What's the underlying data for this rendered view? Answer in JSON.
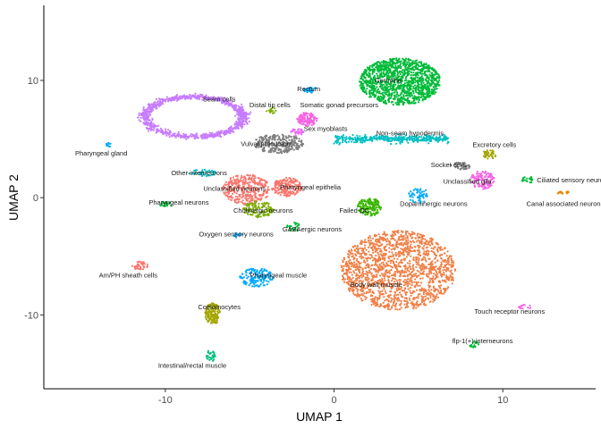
{
  "chart_data": {
    "type": "scatter",
    "xlabel": "UMAP 1",
    "ylabel": "UMAP 2",
    "xlim": [
      -17.2,
      15.5
    ],
    "ylim": [
      -16.3,
      16.4
    ],
    "x_ticks": [
      {
        "value": -10,
        "label": "-10"
      },
      {
        "value": 0,
        "label": "0"
      },
      {
        "value": 10,
        "label": "10"
      }
    ],
    "y_ticks": [
      {
        "value": -10,
        "label": "-10"
      },
      {
        "value": 0,
        "label": "0"
      },
      {
        "value": 10,
        "label": "10"
      }
    ],
    "grid": false,
    "legend": "none",
    "clusters": [
      {
        "label": "Germline",
        "x": 3.9,
        "y": 9.9,
        "color": "#00BA38",
        "shape": "blob",
        "rx": 2.4,
        "ry": 2.0,
        "n": 1200
      },
      {
        "label": "Seam cells",
        "x": -8.3,
        "y": 6.9,
        "color": "#C77CFF",
        "shape": "ring",
        "rx": 2.9,
        "ry": 1.7,
        "n": 900
      },
      {
        "label": "Body wall muscle",
        "x": 3.8,
        "y": -6.2,
        "color": "#F07F45",
        "shape": "blob",
        "rx": 3.4,
        "ry": 3.4,
        "n": 1600
      },
      {
        "label": "Rectum",
        "x": -1.4,
        "y": 9.2,
        "color": "#00A9FF",
        "shape": "blob",
        "rx": 0.4,
        "ry": 0.25,
        "n": 30
      },
      {
        "label": "Distal tip cells",
        "x": -3.7,
        "y": 7.4,
        "color": "#7CAE00",
        "shape": "blob",
        "rx": 0.3,
        "ry": 0.3,
        "n": 15
      },
      {
        "label": "Somatic gonad precursors",
        "x": -1.6,
        "y": 6.7,
        "color": "#F564E3",
        "shape": "blob",
        "rx": 0.6,
        "ry": 0.6,
        "n": 120
      },
      {
        "label": "Sex myoblasts",
        "x": -2.2,
        "y": 5.6,
        "color": "#E76BF3",
        "shape": "blob",
        "rx": 0.4,
        "ry": 0.3,
        "n": 30
      },
      {
        "label": "Vulval precursors",
        "x": -3.3,
        "y": 4.6,
        "color": "#7F7F7F",
        "shape": "blob",
        "rx": 1.5,
        "ry": 0.8,
        "n": 250
      },
      {
        "label": "Non-seam hypodermis",
        "x": 3.4,
        "y": 5.0,
        "color": "#00BFC4",
        "shape": "band",
        "rx": 3.4,
        "ry": 0.3,
        "n": 350
      },
      {
        "label": "Excretory cells",
        "x": 9.2,
        "y": 3.7,
        "color": "#A3A500",
        "shape": "blob",
        "rx": 0.4,
        "ry": 0.4,
        "n": 40
      },
      {
        "label": "Pharyngeal gland",
        "x": -13.4,
        "y": 4.5,
        "color": "#00A9FF",
        "shape": "blob",
        "rx": 0.2,
        "ry": 0.2,
        "n": 10
      },
      {
        "label": "Other interneurons",
        "x": -7.8,
        "y": 2.1,
        "color": "#00BFC4",
        "shape": "blob",
        "rx": 0.8,
        "ry": 0.3,
        "n": 40
      },
      {
        "label": "Socket cells",
        "x": 7.5,
        "y": 2.7,
        "color": "#7F7F7F",
        "shape": "blob",
        "rx": 0.6,
        "ry": 0.3,
        "n": 40
      },
      {
        "label": "Unclassified glia",
        "x": 8.8,
        "y": 1.5,
        "color": "#F564E3",
        "shape": "blob",
        "rx": 0.7,
        "ry": 0.8,
        "n": 120
      },
      {
        "label": "Ciliated sensory neurons",
        "x": 11.5,
        "y": 1.5,
        "color": "#00BA38",
        "shape": "blob",
        "rx": 0.4,
        "ry": 0.3,
        "n": 20
      },
      {
        "label": "Unclassified neurons",
        "x": -5.2,
        "y": 0.7,
        "color": "#F8766D",
        "shape": "blob",
        "rx": 1.4,
        "ry": 1.3,
        "n": 350
      },
      {
        "label": "Pharyngeal epithelia",
        "x": -2.8,
        "y": 0.9,
        "color": "#F8766D",
        "shape": "blob",
        "rx": 0.9,
        "ry": 0.8,
        "n": 180
      },
      {
        "label": "Pharyngeal neurons",
        "x": -10.0,
        "y": -0.6,
        "color": "#00BA38",
        "shape": "blob",
        "rx": 0.4,
        "ry": 0.3,
        "n": 20
      },
      {
        "label": "Cholinergic neurons",
        "x": -4.5,
        "y": -1.0,
        "color": "#7CAE00",
        "shape": "blob",
        "rx": 0.9,
        "ry": 0.7,
        "n": 120
      },
      {
        "label": "Failed QC",
        "x": 2.1,
        "y": -0.8,
        "color": "#39B600",
        "shape": "blob",
        "rx": 0.7,
        "ry": 0.8,
        "n": 160
      },
      {
        "label": "Dopaminergic neurons",
        "x": 5.0,
        "y": 0.2,
        "color": "#00A9FF",
        "shape": "blob",
        "rx": 0.6,
        "ry": 0.7,
        "n": 60
      },
      {
        "label": "Canal associated neurons",
        "x": 13.6,
        "y": 0.4,
        "color": "#E58700",
        "shape": "blob",
        "rx": 0.4,
        "ry": 0.15,
        "n": 15
      },
      {
        "label": "Oxygen sensory neurons",
        "x": -5.7,
        "y": -3.2,
        "color": "#00A9FF",
        "shape": "blob",
        "rx": 0.3,
        "ry": 0.2,
        "n": 15
      },
      {
        "label": "GABAergic neurons",
        "x": -2.4,
        "y": -2.5,
        "color": "#00BA38",
        "shape": "blob",
        "rx": 0.4,
        "ry": 0.4,
        "n": 25
      },
      {
        "label": "Am/PH sheath cells",
        "x": -11.5,
        "y": -5.8,
        "color": "#F8766D",
        "shape": "blob",
        "rx": 0.5,
        "ry": 0.4,
        "n": 40
      },
      {
        "label": "Pharyngeal muscle",
        "x": -4.6,
        "y": -6.8,
        "color": "#00A9FF",
        "shape": "blob",
        "rx": 1.0,
        "ry": 0.8,
        "n": 150
      },
      {
        "label": "Coelomocytes",
        "x": -7.2,
        "y": -9.9,
        "color": "#A3A500",
        "shape": "blob",
        "rx": 0.45,
        "ry": 0.9,
        "n": 140
      },
      {
        "label": "Touch receptor neurons",
        "x": 11.3,
        "y": -9.3,
        "color": "#F564E3",
        "shape": "blob",
        "rx": 0.4,
        "ry": 0.2,
        "n": 15
      },
      {
        "label": "flp-1(+) interneurons",
        "x": 8.3,
        "y": -12.5,
        "color": "#00BA38",
        "shape": "blob",
        "rx": 0.3,
        "ry": 0.3,
        "n": 15
      },
      {
        "label": "Intestinal/rectal muscle",
        "x": -7.3,
        "y": -13.5,
        "color": "#00BF7D",
        "shape": "blob",
        "rx": 0.3,
        "ry": 0.5,
        "n": 30
      }
    ],
    "labels": [
      {
        "text": "Germline",
        "x": 3.2,
        "y": 9.8
      },
      {
        "text": "Rectum",
        "x": -1.5,
        "y": 9.1
      },
      {
        "text": "Seam cells",
        "x": -6.8,
        "y": 8.2
      },
      {
        "text": "Distal tip cells",
        "x": -3.8,
        "y": 7.7
      },
      {
        "text": "Somatic gonad precursors",
        "x": 0.3,
        "y": 7.7
      },
      {
        "text": "Sex myoblasts",
        "x": -0.5,
        "y": 5.7
      },
      {
        "text": "Non-seam hypodermis",
        "x": 4.5,
        "y": 5.3
      },
      {
        "text": "Vulval precursors",
        "x": -4.0,
        "y": 4.4
      },
      {
        "text": "Excretory cells",
        "x": 9.5,
        "y": 4.3
      },
      {
        "text": "Pharyngeal gland",
        "x": -13.8,
        "y": 3.6
      },
      {
        "text": "Socket cells",
        "x": 6.8,
        "y": 2.6
      },
      {
        "text": "Other interneurons",
        "x": -8.0,
        "y": 1.9
      },
      {
        "text": "Unclassified glia",
        "x": 7.9,
        "y": 1.2
      },
      {
        "text": "Ciliated sensory neurons",
        "x": 14.2,
        "y": 1.3
      },
      {
        "text": "Unclassified neurons",
        "x": -5.9,
        "y": 0.6
      },
      {
        "text": "Pharyngeal epithelia",
        "x": -1.4,
        "y": 0.7
      },
      {
        "text": "Pharyngeal neurons",
        "x": -9.2,
        "y": -0.6
      },
      {
        "text": "Dopaminergic neurons",
        "x": 5.9,
        "y": -0.7
      },
      {
        "text": "Canal associated neurons",
        "x": 13.7,
        "y": -0.7
      },
      {
        "text": "Cholinergic neurons",
        "x": -4.2,
        "y": -1.3
      },
      {
        "text": "Failed QC",
        "x": 1.2,
        "y": -1.3
      },
      {
        "text": "GABAergic neurons",
        "x": -1.3,
        "y": -2.9
      },
      {
        "text": "Oxygen sensory neurons",
        "x": -5.8,
        "y": -3.3
      },
      {
        "text": "Am/PH sheath cells",
        "x": -12.2,
        "y": -6.8
      },
      {
        "text": "Pharyngeal muscle",
        "x": -3.3,
        "y": -6.8
      },
      {
        "text": "Body wall muscle",
        "x": 2.5,
        "y": -7.6
      },
      {
        "text": "Coelomocytes",
        "x": -6.8,
        "y": -9.5
      },
      {
        "text": "Touch receptor neurons",
        "x": 10.4,
        "y": -9.9
      },
      {
        "text": "flp-1(+) interneurons",
        "x": 8.8,
        "y": -12.4
      },
      {
        "text": "Intestinal/rectal muscle",
        "x": -8.4,
        "y": -14.5
      }
    ]
  }
}
